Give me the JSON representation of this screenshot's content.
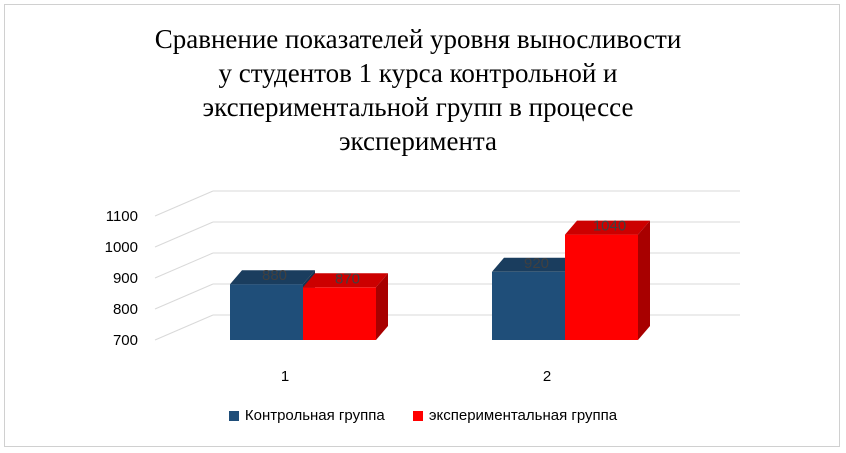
{
  "chart_data": {
    "type": "bar",
    "title": "Сравнение показателей уровня выносливости у студентов 1 курса контрольной и экспериментальной групп в процессе эксперимента",
    "title_lines": [
      "Сравнение показателей уровня выносливости",
      "у студентов 1 курса контрольной и",
      "экспериментальной групп в процессе",
      "эксперимента"
    ],
    "categories": [
      "1",
      "2"
    ],
    "series": [
      {
        "name": "Контрольная группа",
        "values": [
          880,
          920
        ],
        "color": "#1f4e79",
        "top_color": "#1a3d5e",
        "side_color": "#163452"
      },
      {
        "name": "экспериментальная группа",
        "values": [
          870,
          1040
        ],
        "color": "#ff0000",
        "top_color": "#cc0000",
        "side_color": "#a80000"
      }
    ],
    "y_ticks": [
      "700",
      "800",
      "900",
      "1000",
      "1100"
    ],
    "ylim": [
      700,
      1100
    ],
    "xlabel": "",
    "ylabel": "",
    "legend_position": "bottom",
    "grid": true,
    "style": "3d-column"
  }
}
